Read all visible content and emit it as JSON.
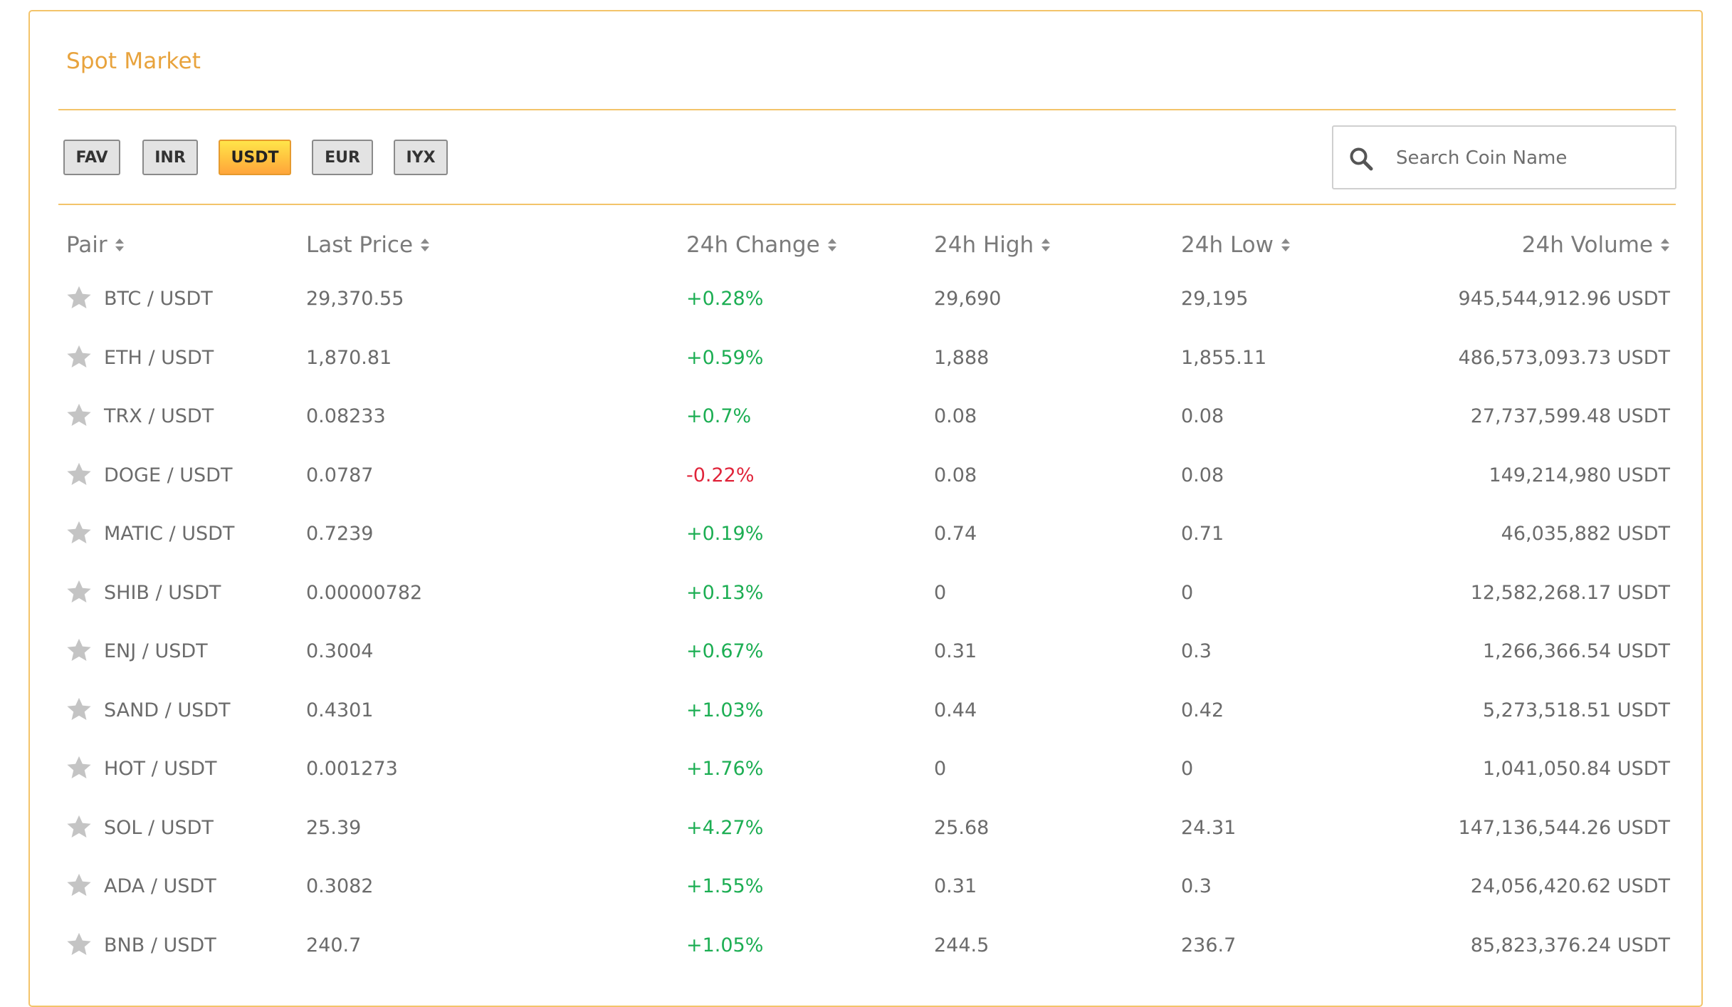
{
  "title": "Spot Market",
  "tabs": [
    {
      "label": "FAV",
      "active": false
    },
    {
      "label": "INR",
      "active": false
    },
    {
      "label": "USDT",
      "active": true
    },
    {
      "label": "EUR",
      "active": false
    },
    {
      "label": "IYX",
      "active": false
    }
  ],
  "search": {
    "placeholder": "Search Coin Name",
    "value": ""
  },
  "columns": {
    "pair": "Pair",
    "last_price": "Last Price",
    "change": "24h Change",
    "high": "24h High",
    "low": "24h Low",
    "volume": "24h Volume"
  },
  "rows": [
    {
      "pair": "BTC / USDT",
      "last_price": "29,370.55",
      "change": "+0.28%",
      "high": "29,690",
      "low": "29,195",
      "volume": "945,544,912.96 USDT"
    },
    {
      "pair": "ETH / USDT",
      "last_price": "1,870.81",
      "change": "+0.59%",
      "high": "1,888",
      "low": "1,855.11",
      "volume": "486,573,093.73 USDT"
    },
    {
      "pair": "TRX / USDT",
      "last_price": "0.08233",
      "change": "+0.7%",
      "high": "0.08",
      "low": "0.08",
      "volume": "27,737,599.48 USDT"
    },
    {
      "pair": "DOGE / USDT",
      "last_price": "0.0787",
      "change": "-0.22%",
      "high": "0.08",
      "low": "0.08",
      "volume": "149,214,980 USDT"
    },
    {
      "pair": "MATIC / USDT",
      "last_price": "0.7239",
      "change": "+0.19%",
      "high": "0.74",
      "low": "0.71",
      "volume": "46,035,882 USDT"
    },
    {
      "pair": "SHIB / USDT",
      "last_price": "0.00000782",
      "change": "+0.13%",
      "high": "0",
      "low": "0",
      "volume": "12,582,268.17 USDT"
    },
    {
      "pair": "ENJ / USDT",
      "last_price": "0.3004",
      "change": "+0.67%",
      "high": "0.31",
      "low": "0.3",
      "volume": "1,266,366.54 USDT"
    },
    {
      "pair": "SAND / USDT",
      "last_price": "0.4301",
      "change": "+1.03%",
      "high": "0.44",
      "low": "0.42",
      "volume": "5,273,518.51 USDT"
    },
    {
      "pair": "HOT / USDT",
      "last_price": "0.001273",
      "change": "+1.76%",
      "high": "0",
      "low": "0",
      "volume": "1,041,050.84 USDT"
    },
    {
      "pair": "SOL / USDT",
      "last_price": "25.39",
      "change": "+4.27%",
      "high": "25.68",
      "low": "24.31",
      "volume": "147,136,544.26 USDT"
    },
    {
      "pair": "ADA / USDT",
      "last_price": "0.3082",
      "change": "+1.55%",
      "high": "0.31",
      "low": "0.3",
      "volume": "24,056,420.62 USDT"
    },
    {
      "pair": "BNB / USDT",
      "last_price": "240.7",
      "change": "+1.05%",
      "high": "244.5",
      "low": "236.7",
      "volume": "85,823,376.24 USDT"
    }
  ],
  "colors": {
    "accent": "#e8a33d",
    "border": "#f3c46a",
    "positive": "#1cae53",
    "negative": "#e0243a",
    "star": "#c4c4c4"
  }
}
